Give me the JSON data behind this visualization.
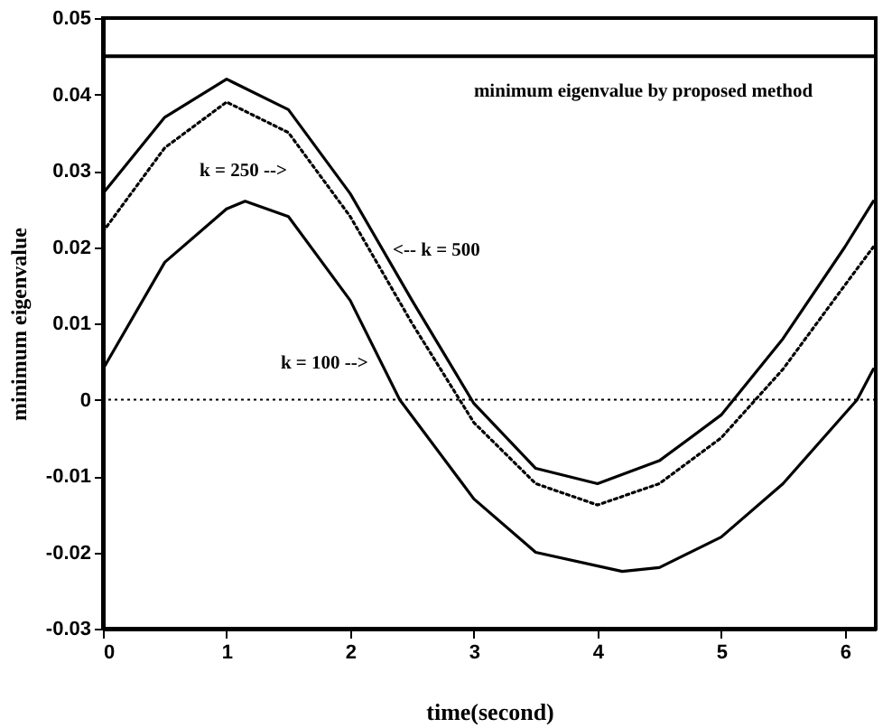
{
  "chart_data": {
    "type": "line",
    "xlabel": "time(second)",
    "ylabel": "minimum eigenvalue",
    "xlim": [
      0,
      6.25
    ],
    "xticks": [
      0,
      1,
      2,
      3,
      4,
      5,
      6
    ],
    "ylim": [
      -0.03,
      0.05
    ],
    "yticks": [
      -0.03,
      -0.02,
      -0.01,
      0,
      0.01,
      0.02,
      0.03,
      0.04,
      0.05
    ],
    "grid": false,
    "series": [
      {
        "color": "#000000",
        "line_style": "solid",
        "x": [
          0,
          0.5,
          1.0,
          1.5,
          2.0,
          2.5,
          3.0,
          3.5,
          4.0,
          4.5,
          5.0,
          5.5,
          6.0,
          6.23
        ],
        "values": [
          0.027,
          0.037,
          0.042,
          0.038,
          0.027,
          0.013,
          -0.0005,
          -0.009,
          -0.011,
          -0.008,
          -0.002,
          0.008,
          0.02,
          0.026
        ]
      },
      {
        "color": "#000000",
        "line_style": "dotted",
        "x": [
          0,
          0.5,
          1.0,
          1.5,
          2.0,
          2.5,
          3.0,
          3.5,
          4.0,
          4.5,
          5.0,
          5.5,
          6.0,
          6.23
        ],
        "values": [
          0.022,
          0.033,
          0.039,
          0.035,
          0.024,
          0.01,
          -0.003,
          -0.011,
          -0.0138,
          -0.011,
          -0.005,
          0.004,
          0.015,
          0.02
        ]
      },
      {
        "color": "#000000",
        "line_style": "solid",
        "x": [
          0,
          0.5,
          1.0,
          1.15,
          1.5,
          2.0,
          2.4,
          3.0,
          3.5,
          4.2,
          4.5,
          5.0,
          5.5,
          6.1,
          6.23
        ],
        "values": [
          0.004,
          0.018,
          0.025,
          0.026,
          0.024,
          0.013,
          0.0,
          -0.013,
          -0.02,
          -0.0225,
          -0.022,
          -0.018,
          -0.011,
          0.0,
          0.004
        ]
      }
    ],
    "ref_lines": [
      {
        "axis": "y",
        "value": 0.045,
        "line_style": "solid",
        "color": "#000000"
      },
      {
        "axis": "y",
        "value": 0,
        "line_style": "dotted",
        "color": "#000000"
      }
    ],
    "annotations": [
      "minimum eigenvalue by proposed method",
      "k = 250 -->",
      "<-- k = 500",
      "k = 100 -->"
    ]
  }
}
